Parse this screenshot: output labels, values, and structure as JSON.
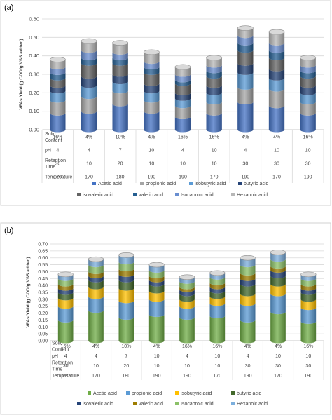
{
  "chart_data": [
    {
      "type": "bar",
      "panel_label": "(a)",
      "ylabel": "VFAs Yield (g COD/g VSS added)",
      "ylim": [
        0,
        0.6
      ],
      "yticks": [
        "0.00",
        "0.10",
        "0.20",
        "0.30",
        "0.40",
        "0.50",
        "0.60"
      ],
      "stacked": true,
      "table": {
        "rows": [
          {
            "label": [
              "Solid",
              "Content"
            ],
            "values": [
              "16%",
              "4%",
              "10%",
              "4%",
              "16%",
              "16%",
              "4%",
              "4%",
              "16%"
            ]
          },
          {
            "label": [
              "pH"
            ],
            "values": [
              "4",
              "4",
              "7",
              "10",
              "4",
              "10",
              "4",
              "10",
              "10"
            ]
          },
          {
            "label": [
              "Retention",
              "Time"
            ],
            "values": [
              "30",
              "10",
              "20",
              "10",
              "10",
              "10",
              "30",
              "30",
              "30"
            ]
          },
          {
            "label": [
              "Temperature"
            ],
            "values": [
              "170",
              "170",
              "180",
              "190",
              "190",
              "170",
              "190",
              "170",
              "190"
            ]
          }
        ]
      },
      "legend": [
        {
          "name": "Acetic acid",
          "color": "#4472C4"
        },
        {
          "name": "propionic acid",
          "color": "#A5A5A5"
        },
        {
          "name": "isobutyric acid",
          "color": "#5B9BD5"
        },
        {
          "name": "butyric acid",
          "color": "#264478"
        },
        {
          "name": "isovaleric acid",
          "color": "#636363"
        },
        {
          "name": "valeric acid",
          "color": "#255E91"
        },
        {
          "name": "Isocaproic acid",
          "color": "#698ED0"
        },
        {
          "name": "Hexanoic acid",
          "color": "#B7B7B7"
        }
      ],
      "series": [
        {
          "name": "Acetic acid",
          "values": [
            0.09,
            0.1,
            0.14,
            0.1,
            0.07,
            0.09,
            0.15,
            0.13,
            0.09
          ]
        },
        {
          "name": "propionic acid",
          "values": [
            0.07,
            0.08,
            0.07,
            0.06,
            0.06,
            0.06,
            0.08,
            0.09,
            0.06
          ]
        },
        {
          "name": "isobutyric acid",
          "values": [
            0.05,
            0.06,
            0.05,
            0.05,
            0.04,
            0.05,
            0.08,
            0.06,
            0.05
          ]
        },
        {
          "name": "butyric acid",
          "values": [
            0.03,
            0.05,
            0.04,
            0.04,
            0.03,
            0.04,
            0.05,
            0.05,
            0.04
          ]
        },
        {
          "name": "isovaleric acid",
          "values": [
            0.04,
            0.07,
            0.06,
            0.06,
            0.05,
            0.05,
            0.07,
            0.06,
            0.05
          ]
        },
        {
          "name": "valeric acid",
          "values": [
            0.03,
            0.03,
            0.03,
            0.03,
            0.02,
            0.03,
            0.04,
            0.04,
            0.03
          ]
        },
        {
          "name": "Isocaproic acid",
          "values": [
            0.03,
            0.04,
            0.03,
            0.03,
            0.03,
            0.03,
            0.04,
            0.04,
            0.03
          ]
        },
        {
          "name": "Hexanoic acid",
          "values": [
            0.04,
            0.05,
            0.05,
            0.05,
            0.04,
            0.04,
            0.04,
            0.06,
            0.04
          ]
        }
      ]
    },
    {
      "type": "bar",
      "panel_label": "(b)",
      "ylabel": "VFAs Yield (g COD/g VSS added)",
      "ylim": [
        0,
        0.7
      ],
      "yticks": [
        "0.00",
        "0.05",
        "0.10",
        "0.15",
        "0.20",
        "0.25",
        "0.30",
        "0.35",
        "0.40",
        "0.45",
        "0.50",
        "0.55",
        "0.60",
        "0.65",
        "0.70"
      ],
      "stacked": true,
      "table": {
        "rows": [
          {
            "label": [
              "Solid",
              "Content"
            ],
            "values": [
              "16%",
              "4%",
              "10%",
              "4%",
              "16%",
              "16%",
              "4%",
              "4%",
              "16%"
            ]
          },
          {
            "label": [
              "pH"
            ],
            "values": [
              "4",
              "4",
              "7",
              "10",
              "4",
              "10",
              "4",
              "10",
              "10"
            ]
          },
          {
            "label": [
              "Retention",
              "Time"
            ],
            "values": [
              "30",
              "10",
              "20",
              "10",
              "10",
              "10",
              "30",
              "30",
              "30"
            ]
          },
          {
            "label": [
              "Temperature"
            ],
            "values": [
              "170",
              "170",
              "180",
              "190",
              "190",
              "170",
              "190",
              "170",
              "190"
            ]
          }
        ]
      },
      "legend": [
        {
          "name": "Acetic acid",
          "color": "#70AD47"
        },
        {
          "name": "propionic acid",
          "color": "#5B9BD5"
        },
        {
          "name": "isobutyric acid",
          "color": "#FFC000"
        },
        {
          "name": "butyric acid",
          "color": "#43682B"
        },
        {
          "name": "isovaleric acid",
          "color": "#264478"
        },
        {
          "name": "valeric acid",
          "color": "#9E7D00"
        },
        {
          "name": "Isocaproic acid",
          "color": "#8CC168"
        },
        {
          "name": "Hexanoic acid",
          "color": "#7CAFDD"
        }
      ],
      "series": [
        {
          "name": "Acetic acid",
          "values": [
            0.15,
            0.22,
            0.17,
            0.19,
            0.17,
            0.18,
            0.15,
            0.21,
            0.14
          ]
        },
        {
          "name": "propionic acid",
          "values": [
            0.1,
            0.1,
            0.12,
            0.11,
            0.08,
            0.09,
            0.12,
            0.13,
            0.1
          ]
        },
        {
          "name": "isobutyric acid",
          "values": [
            0.06,
            0.07,
            0.09,
            0.06,
            0.05,
            0.05,
            0.07,
            0.07,
            0.06
          ]
        },
        {
          "name": "butyric acid",
          "values": [
            0.04,
            0.05,
            0.06,
            0.05,
            0.04,
            0.04,
            0.07,
            0.06,
            0.05
          ]
        },
        {
          "name": "isovaleric acid",
          "values": [
            0.03,
            0.03,
            0.04,
            0.03,
            0.03,
            0.03,
            0.04,
            0.04,
            0.03
          ]
        },
        {
          "name": "valeric acid",
          "values": [
            0.03,
            0.03,
            0.04,
            0.03,
            0.02,
            0.03,
            0.04,
            0.03,
            0.03
          ]
        },
        {
          "name": "Isocaproic acid",
          "values": [
            0.04,
            0.05,
            0.05,
            0.04,
            0.04,
            0.04,
            0.06,
            0.05,
            0.04
          ]
        },
        {
          "name": "Hexanoic acid",
          "values": [
            0.03,
            0.04,
            0.05,
            0.04,
            0.03,
            0.03,
            0.05,
            0.05,
            0.03
          ]
        }
      ]
    }
  ]
}
